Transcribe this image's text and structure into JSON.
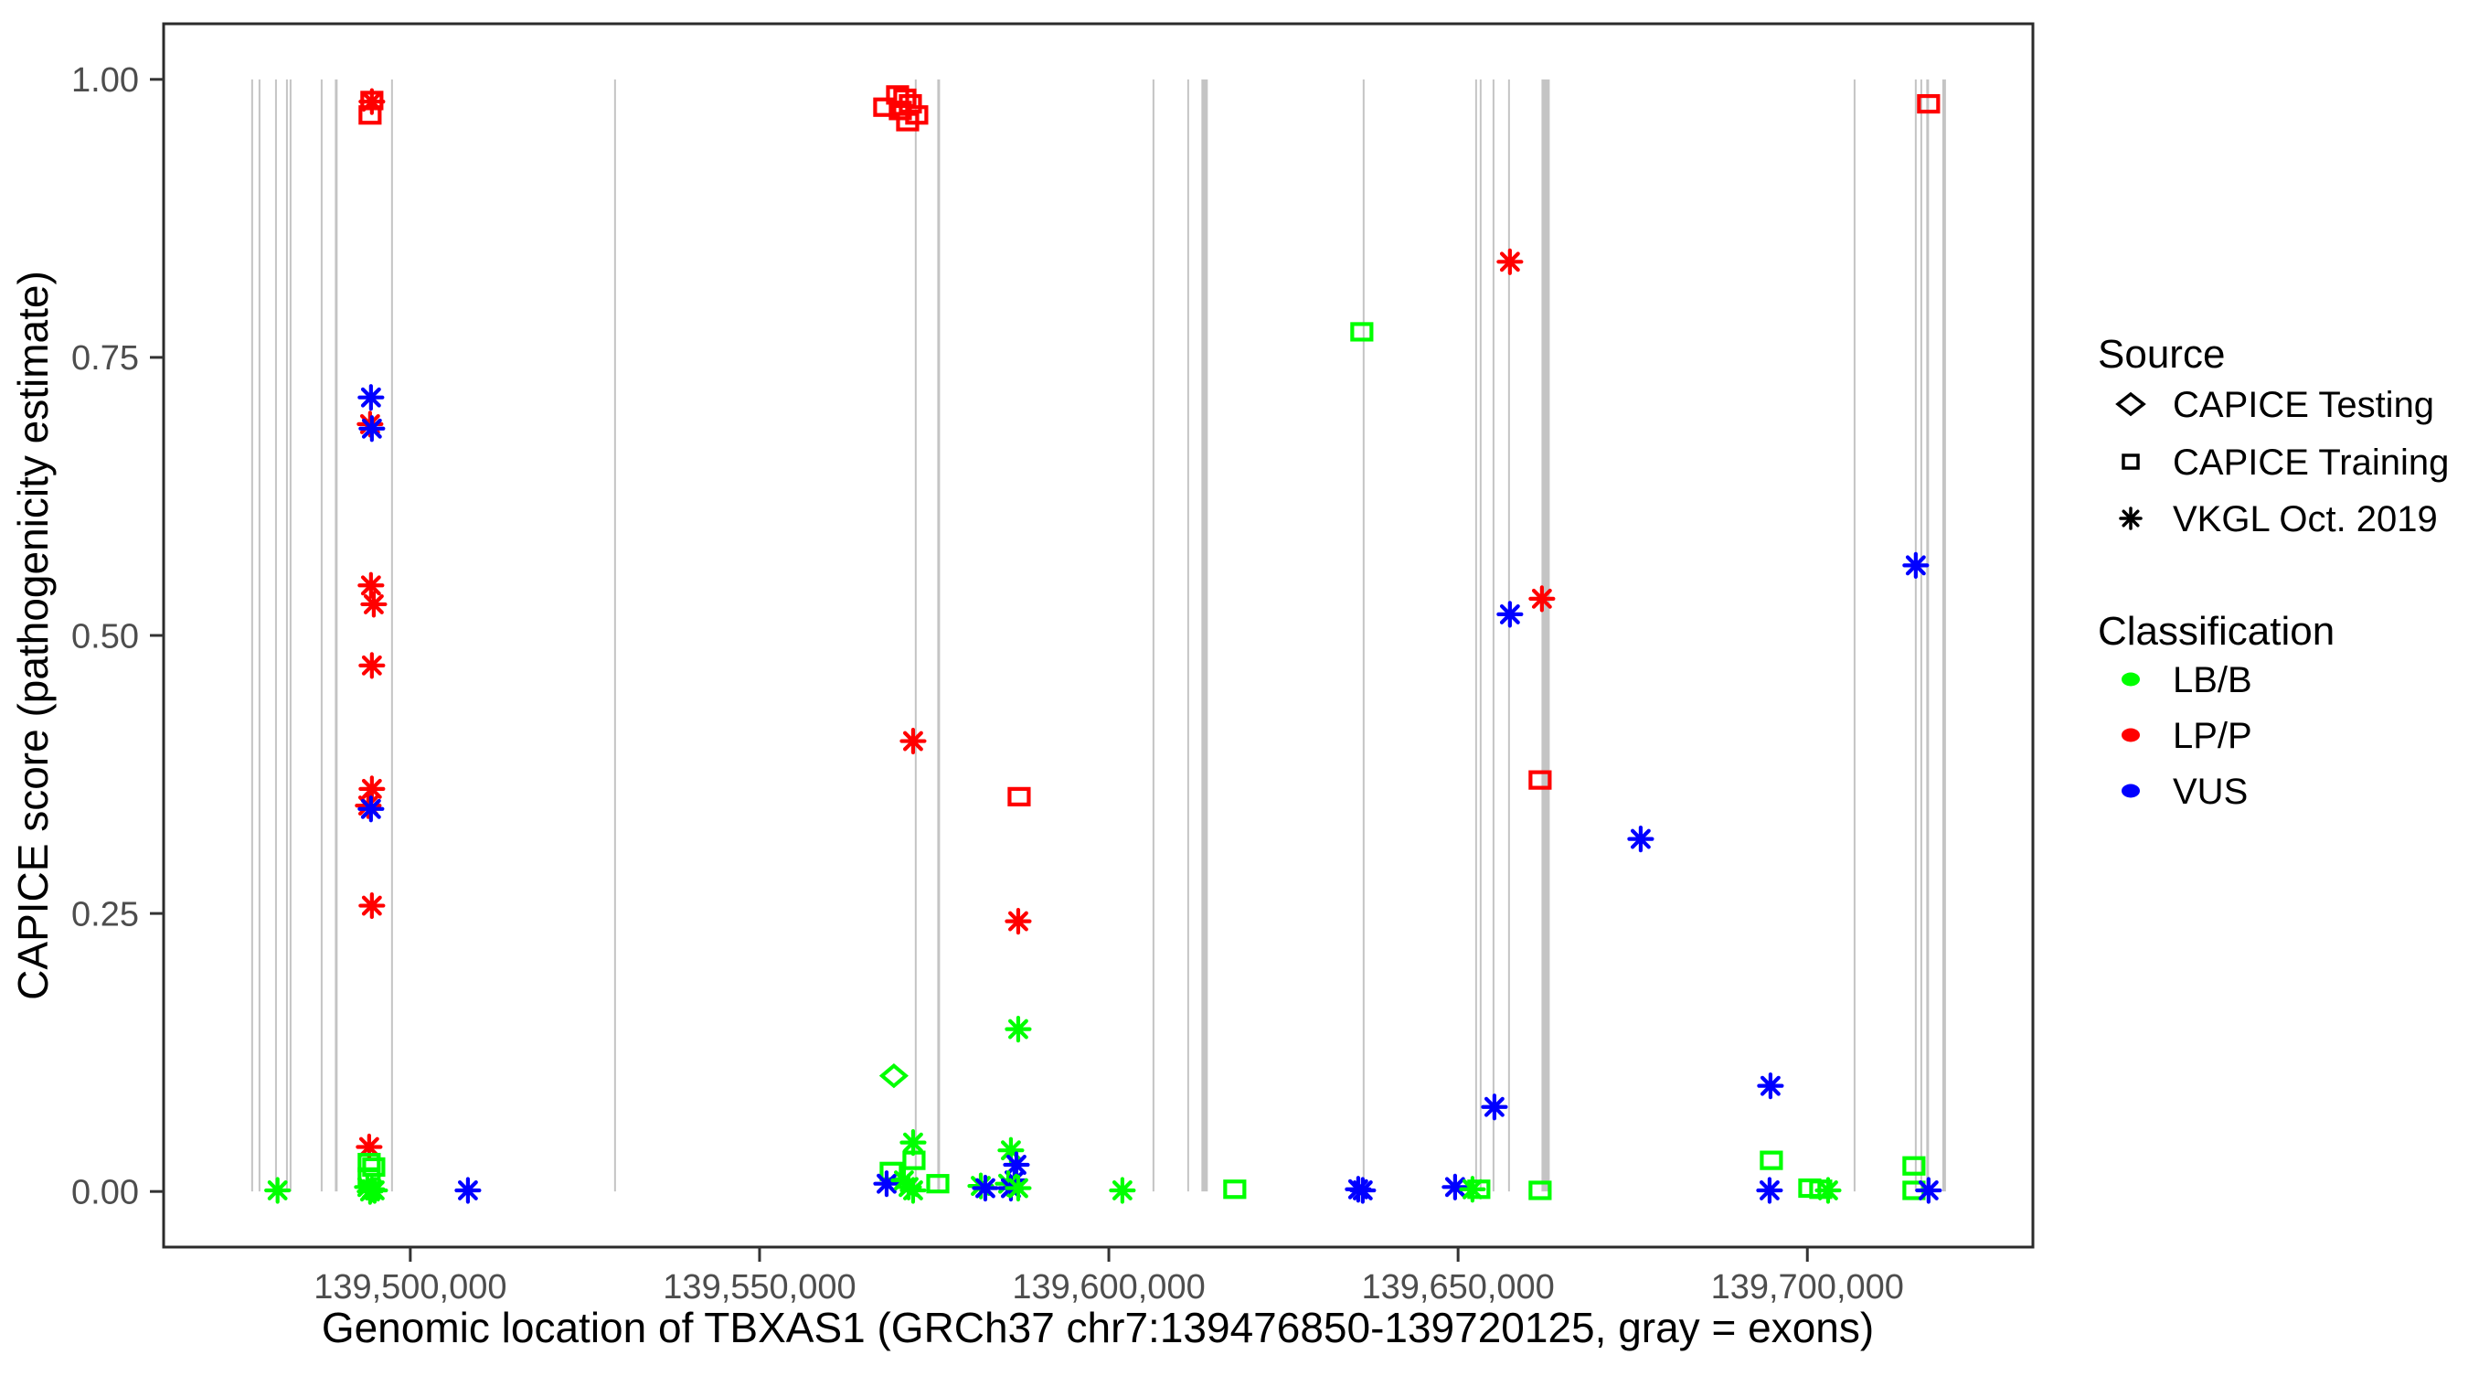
{
  "chart_data": {
    "type": "scatter",
    "title": "",
    "xlabel": "Genomic location of TBXAS1 (GRCh37 chr7:139476850-139720125, gray = exons)",
    "ylabel": "CAPICE score (pathogenicity estimate)",
    "x_range": [
      139464686,
      139732289
    ],
    "y_range": [
      -0.05,
      1.05
    ],
    "grid": "off",
    "x_ticks": [
      {
        "value": 139500000,
        "label": "139,500,000"
      },
      {
        "value": 139550000,
        "label": "139,550,000"
      },
      {
        "value": 139600000,
        "label": "139,600,000"
      },
      {
        "value": 139650000,
        "label": "139,650,000"
      },
      {
        "value": 139700000,
        "label": "139,700,000"
      }
    ],
    "y_ticks": [
      {
        "value": 0.0,
        "label": "0.00"
      },
      {
        "value": 0.25,
        "label": "0.25"
      },
      {
        "value": 0.5,
        "label": "0.50"
      },
      {
        "value": 0.75,
        "label": "0.75"
      },
      {
        "value": 1.0,
        "label": "1.00"
      }
    ],
    "exon_note": "gray vertical lines mark exons; position_bp with line width in px",
    "exon_y_span": [
      0.0,
      1.0
    ],
    "exons": [
      {
        "pos": 139477360,
        "w": 2
      },
      {
        "pos": 139478410,
        "w": 2
      },
      {
        "pos": 139480770,
        "w": 2
      },
      {
        "pos": 139482340,
        "w": 2
      },
      {
        "pos": 139482860,
        "w": 2
      },
      {
        "pos": 139487310,
        "w": 2
      },
      {
        "pos": 139489400,
        "w": 3
      },
      {
        "pos": 139497380,
        "w": 2
      },
      {
        "pos": 139529310,
        "w": 2
      },
      {
        "pos": 139572360,
        "w": 2
      },
      {
        "pos": 139575640,
        "w": 3
      },
      {
        "pos": 139606390,
        "w": 2
      },
      {
        "pos": 139611360,
        "w": 2
      },
      {
        "pos": 139613710,
        "w": 7
      },
      {
        "pos": 139636480,
        "w": 2
      },
      {
        "pos": 139652580,
        "w": 2
      },
      {
        "pos": 139653230,
        "w": 2
      },
      {
        "pos": 139655070,
        "w": 2
      },
      {
        "pos": 139657290,
        "w": 2
      },
      {
        "pos": 139662530,
        "w": 9
      },
      {
        "pos": 139706760,
        "w": 2
      },
      {
        "pos": 139715520,
        "w": 2
      },
      {
        "pos": 139716310,
        "w": 2
      },
      {
        "pos": 139717220,
        "w": 3
      },
      {
        "pos": 139719580,
        "w": 4
      }
    ],
    "classification_colors": {
      "LB/B": "#00ff00",
      "LP/P": "#ff0000",
      "VUS": "#0000ff"
    },
    "legend": {
      "source": {
        "title": "Source",
        "items": [
          {
            "shape": "diamond",
            "label": "CAPICE Testing"
          },
          {
            "shape": "square",
            "label": "CAPICE Training"
          },
          {
            "shape": "asterisk",
            "label": "VKGL Oct. 2019"
          }
        ]
      },
      "classification": {
        "title": "Classification",
        "items": [
          {
            "label": "LB/B",
            "color": "#00ff00"
          },
          {
            "label": "LP/P",
            "color": "#ff0000"
          },
          {
            "label": "VUS",
            "color": "#0000ff"
          }
        ]
      }
    },
    "points_format": [
      "position_bp",
      "capice_score",
      "classification",
      "source_shape"
    ],
    "points": [
      [
        139481000,
        0.001,
        "LB/B",
        "asterisk"
      ],
      [
        139494500,
        0.981,
        "LP/P",
        "square"
      ],
      [
        139494500,
        0.98,
        "LP/P",
        "asterisk"
      ],
      [
        139494240,
        0.968,
        "LP/P",
        "square"
      ],
      [
        139494370,
        0.714,
        "VUS",
        "asterisk"
      ],
      [
        139494240,
        0.69,
        "LP/P",
        "asterisk"
      ],
      [
        139494500,
        0.686,
        "VUS",
        "asterisk"
      ],
      [
        139494370,
        0.545,
        "LP/P",
        "asterisk"
      ],
      [
        139494770,
        0.528,
        "LP/P",
        "asterisk"
      ],
      [
        139494500,
        0.473,
        "LP/P",
        "asterisk"
      ],
      [
        139494500,
        0.362,
        "LP/P",
        "asterisk"
      ],
      [
        139493980,
        0.347,
        "LP/P",
        "asterisk"
      ],
      [
        139494370,
        0.344,
        "VUS",
        "asterisk"
      ],
      [
        139494500,
        0.257,
        "LP/P",
        "asterisk"
      ],
      [
        139494110,
        0.04,
        "LP/P",
        "asterisk"
      ],
      [
        139494110,
        0.026,
        "LB/B",
        "square"
      ],
      [
        139494770,
        0.022,
        "LB/B",
        "square"
      ],
      [
        139494110,
        0.013,
        "LB/B",
        "square"
      ],
      [
        139493850,
        0.004,
        "LB/B",
        "asterisk"
      ],
      [
        139494500,
        0.002,
        "LB/B",
        "asterisk"
      ],
      [
        139494900,
        0.001,
        "LB/B",
        "asterisk"
      ],
      [
        139494240,
        0.0,
        "LB/B",
        "asterisk"
      ],
      [
        139508250,
        0.001,
        "VUS",
        "asterisk"
      ],
      [
        139567920,
        0.975,
        "LP/P",
        "square"
      ],
      [
        139569760,
        0.986,
        "LP/P",
        "square"
      ],
      [
        139570150,
        0.972,
        "LP/P",
        "square"
      ],
      [
        139570800,
        0.983,
        "LP/P",
        "square"
      ],
      [
        139571200,
        0.962,
        "LP/P",
        "square"
      ],
      [
        139571590,
        0.978,
        "LP/P",
        "square"
      ],
      [
        139572500,
        0.968,
        "LP/P",
        "square"
      ],
      [
        139571980,
        0.405,
        "LP/P",
        "asterisk"
      ],
      [
        139587160,
        0.355,
        "LP/P",
        "square"
      ],
      [
        139587030,
        0.243,
        "LP/P",
        "asterisk"
      ],
      [
        139587030,
        0.146,
        "LB/B",
        "asterisk"
      ],
      [
        139569230,
        0.104,
        "LB/B",
        "diamond"
      ],
      [
        139571980,
        0.044,
        "LB/B",
        "asterisk"
      ],
      [
        139572110,
        0.028,
        "LB/B",
        "square"
      ],
      [
        139568840,
        0.018,
        "LB/B",
        "square"
      ],
      [
        139568190,
        0.007,
        "VUS",
        "asterisk"
      ],
      [
        139570670,
        0.01,
        "LB/B",
        "asterisk"
      ],
      [
        139571330,
        0.004,
        "LB/B",
        "asterisk"
      ],
      [
        139571980,
        0.001,
        "LB/B",
        "asterisk"
      ],
      [
        139575520,
        0.007,
        "LB/B",
        "square"
      ],
      [
        139581670,
        0.005,
        "LB/B",
        "asterisk"
      ],
      [
        139582320,
        0.003,
        "VUS",
        "asterisk"
      ],
      [
        139585980,
        0.037,
        "LB/B",
        "asterisk"
      ],
      [
        139586770,
        0.024,
        "VUS",
        "asterisk"
      ],
      [
        139586500,
        0.01,
        "VUS",
        "asterisk"
      ],
      [
        139585590,
        0.007,
        "LB/B",
        "asterisk"
      ],
      [
        139585980,
        0.003,
        "VUS",
        "asterisk"
      ],
      [
        139587030,
        0.003,
        "LB/B",
        "asterisk"
      ],
      [
        139601940,
        0.001,
        "LB/B",
        "asterisk"
      ],
      [
        139618030,
        0.002,
        "LB/B",
        "square"
      ],
      [
        139636220,
        0.773,
        "LB/B",
        "square"
      ],
      [
        139635700,
        0.002,
        "VUS",
        "asterisk"
      ],
      [
        139636350,
        0.001,
        "VUS",
        "asterisk"
      ],
      [
        139649570,
        0.004,
        "VUS",
        "asterisk"
      ],
      [
        139652060,
        0.002,
        "LB/B",
        "asterisk"
      ],
      [
        139652970,
        0.002,
        "LB/B",
        "square"
      ],
      [
        139655200,
        0.076,
        "VUS",
        "asterisk"
      ],
      [
        139657420,
        0.836,
        "LP/P",
        "asterisk"
      ],
      [
        139657420,
        0.519,
        "VUS",
        "asterisk"
      ],
      [
        139662000,
        0.533,
        "LP/P",
        "asterisk"
      ],
      [
        139661740,
        0.37,
        "LP/P",
        "square"
      ],
      [
        139661740,
        0.001,
        "LB/B",
        "square"
      ],
      [
        139676140,
        0.317,
        "VUS",
        "asterisk"
      ],
      [
        139694720,
        0.095,
        "VUS",
        "asterisk"
      ],
      [
        139694850,
        0.028,
        "LB/B",
        "square"
      ],
      [
        139694590,
        0.001,
        "VUS",
        "asterisk"
      ],
      [
        139700350,
        0.003,
        "LB/B",
        "square"
      ],
      [
        139701920,
        0.002,
        "LB/B",
        "square"
      ],
      [
        139702970,
        0.001,
        "LB/B",
        "asterisk"
      ],
      [
        139717350,
        0.978,
        "LP/P",
        "square"
      ],
      [
        139715520,
        0.563,
        "VUS",
        "asterisk"
      ],
      [
        139715260,
        0.023,
        "LB/B",
        "square"
      ],
      [
        139715260,
        0.001,
        "LB/B",
        "square"
      ],
      [
        139717350,
        0.001,
        "VUS",
        "asterisk"
      ]
    ],
    "style": {
      "exon_color": "#c4c4c4",
      "panel_border_color": "#2b2b2b",
      "tick_color": "#333333",
      "tick_label_color": "#4d4d4d",
      "background": "#ffffff"
    }
  }
}
